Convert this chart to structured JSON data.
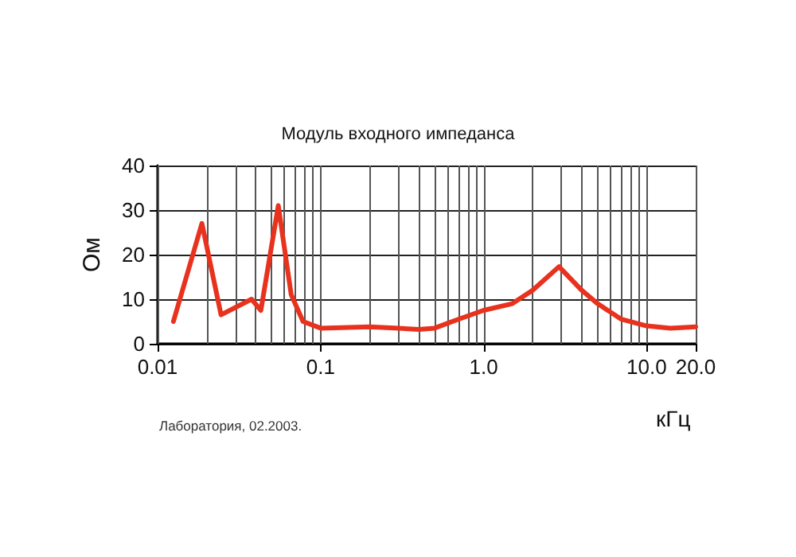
{
  "chart_data": {
    "type": "line",
    "title": "Модуль входного импеданса",
    "xlabel": "кГц",
    "ylabel": "Ом",
    "annotations": [
      "Лаборатория, 02.2003."
    ],
    "log": "x",
    "grid": true,
    "marker": "none",
    "line_style": "solid",
    "xlim": [
      0.01,
      20
    ],
    "xticks": [
      0.01,
      0.1,
      {
        "value": 1,
        "label": "1.0"
      },
      {
        "value": 10,
        "label": "10.0"
      },
      {
        "value": 20,
        "label": "20.0"
      }
    ],
    "ylim": [
      0,
      40
    ],
    "yticks": [
      0,
      10,
      20,
      30,
      40
    ],
    "x": [
      0.0125,
      0.0187,
      0.0245,
      0.0377,
      0.043,
      0.055,
      0.066,
      0.078,
      0.1,
      0.2,
      0.3,
      0.4,
      0.5,
      0.7,
      1.0,
      1.5,
      2.0,
      2.9,
      4.0,
      5.0,
      7.0,
      10.0,
      14.0,
      20.0
    ],
    "series": [
      {
        "color": "#e8321e",
        "values": [
          5,
          27,
          6.5,
          10,
          7.5,
          31,
          11,
          5,
          3.5,
          3.8,
          3.5,
          3.2,
          3.5,
          5.5,
          7.5,
          9,
          12,
          17.3,
          12,
          9,
          5.5,
          4,
          3.5,
          3.8
        ]
      }
    ]
  }
}
